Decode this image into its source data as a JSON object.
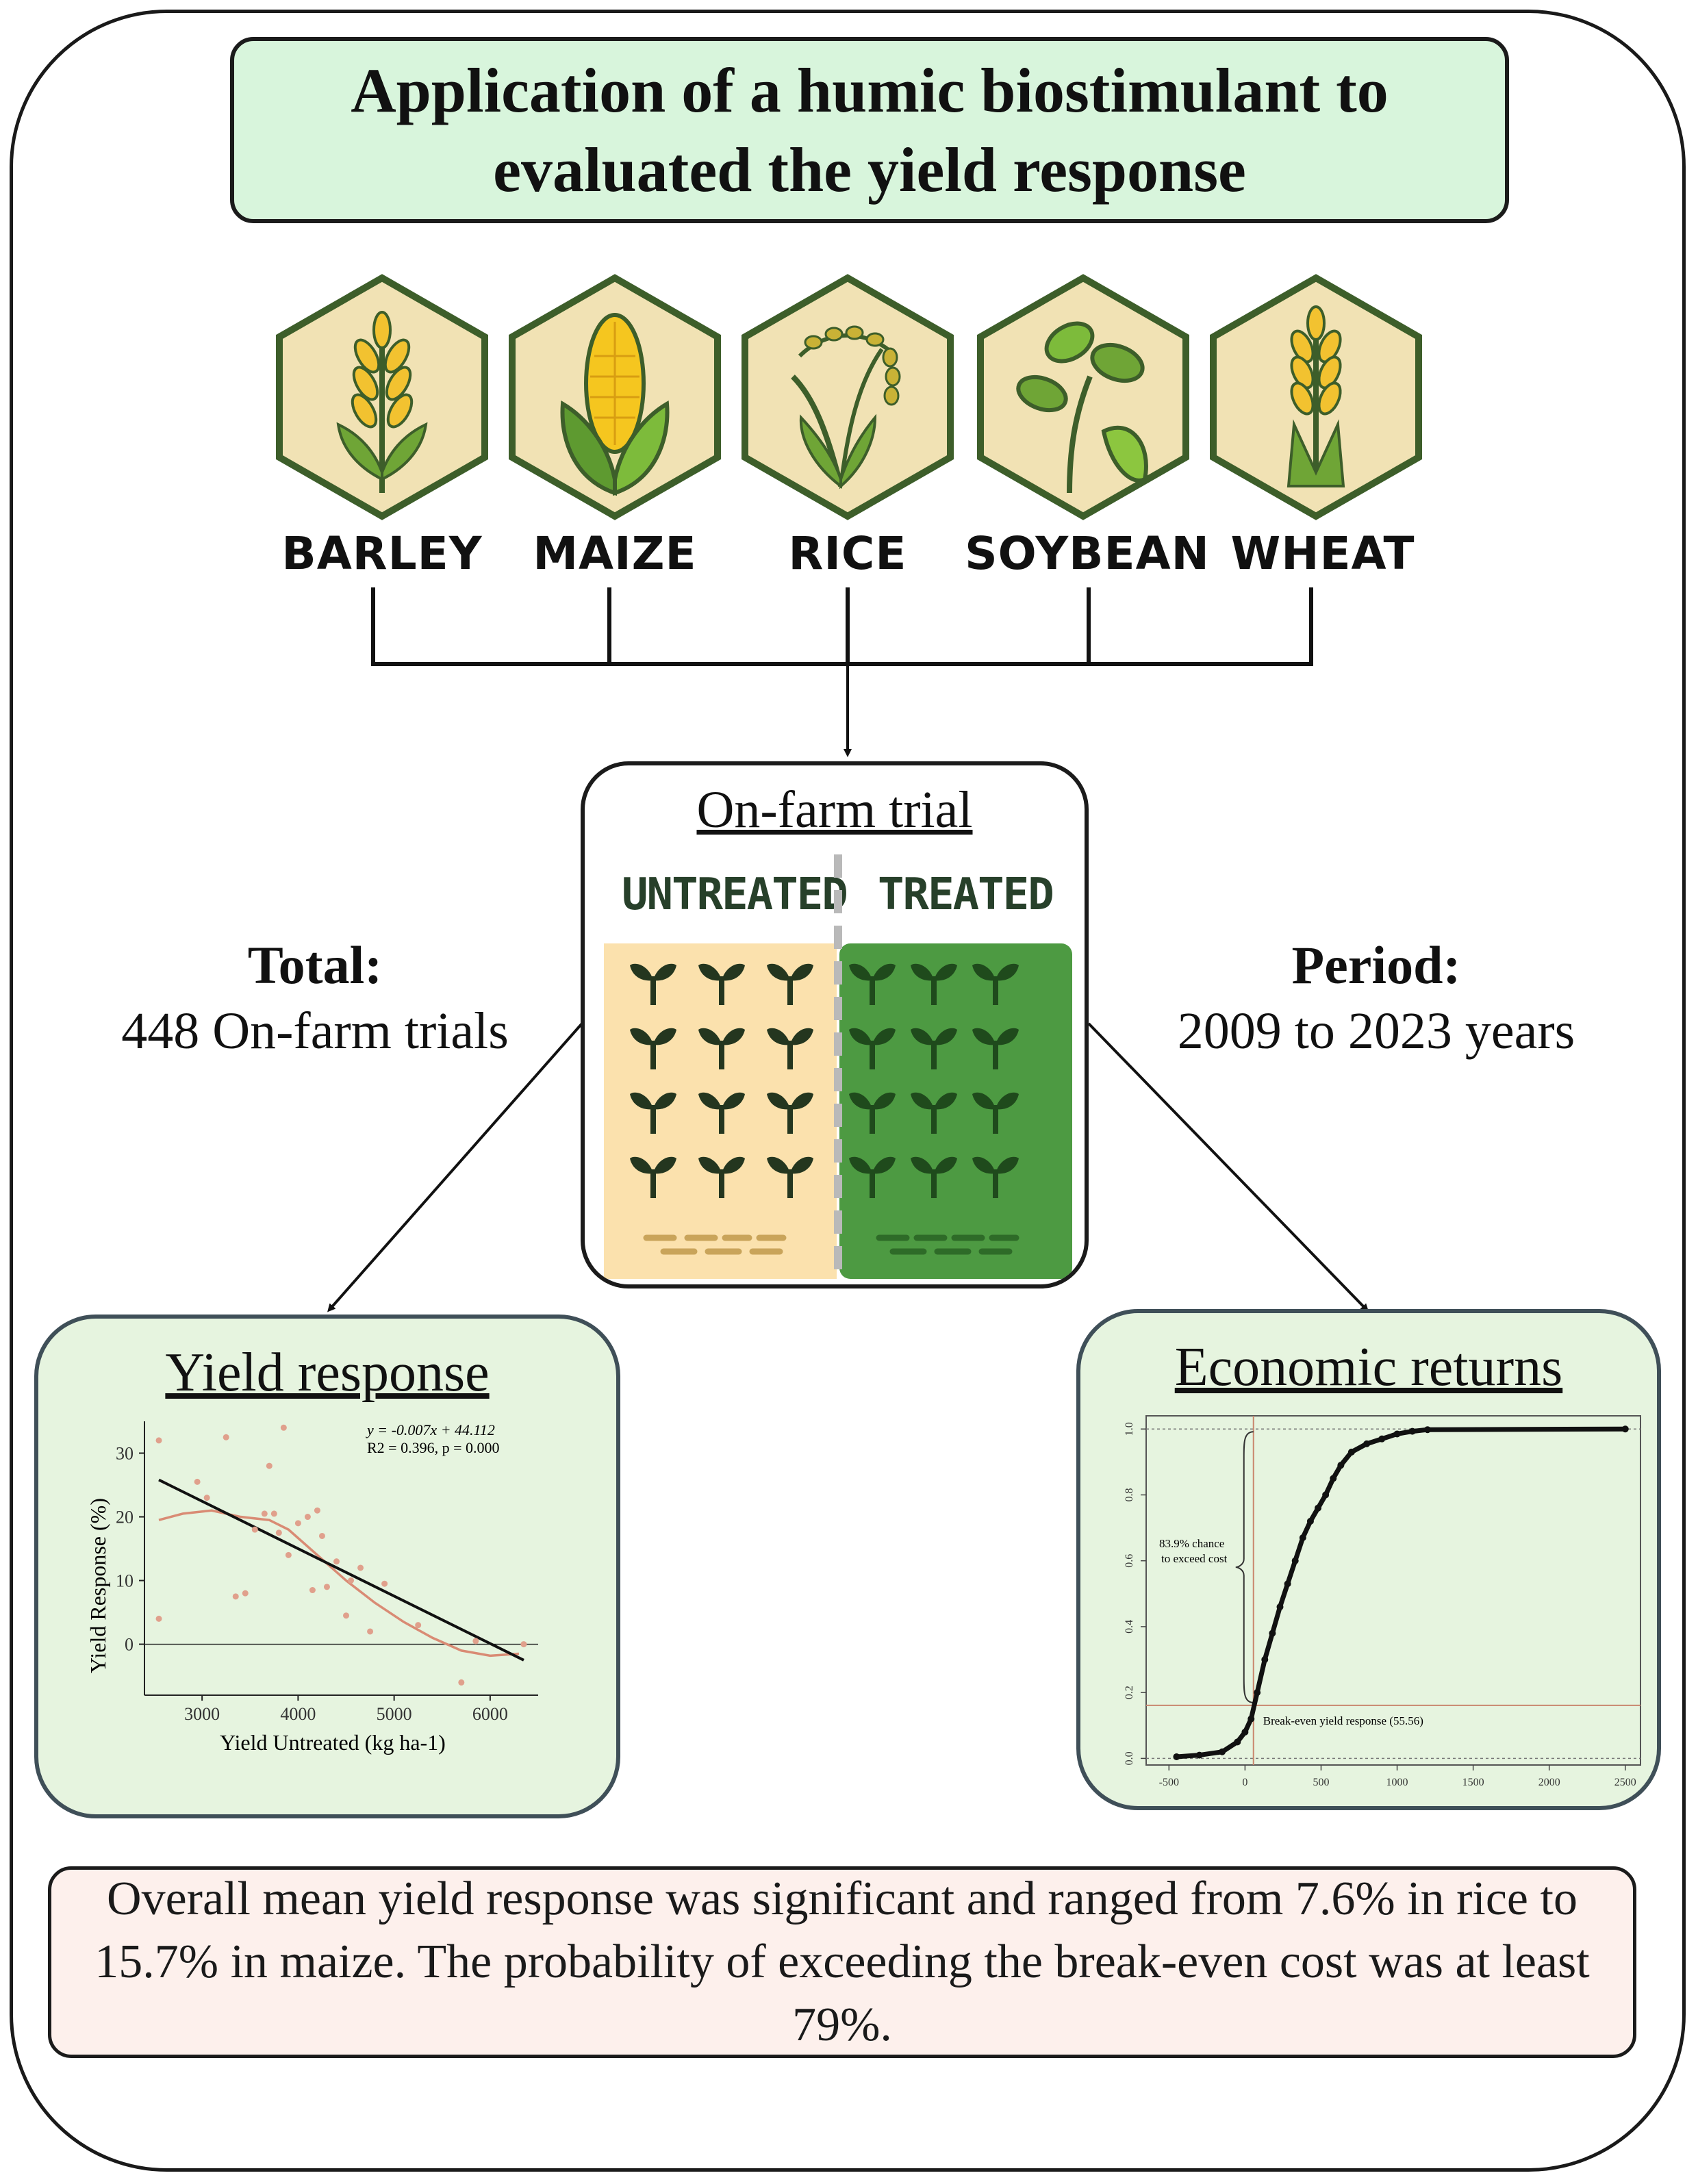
{
  "title": "Application of a humic biostimulant to evaluated the yield response",
  "crops": [
    {
      "label": "BARLEY",
      "icon": "barley-icon"
    },
    {
      "label": "MAIZE",
      "icon": "maize-icon"
    },
    {
      "label": "RICE",
      "icon": "rice-icon"
    },
    {
      "label": "SOYBEAN",
      "icon": "soybean-icon"
    },
    {
      "label": "WHEAT",
      "icon": "wheat-icon"
    }
  ],
  "total": {
    "heading": "Total:",
    "text": "448 On-farm trials"
  },
  "period": {
    "heading": "Period:",
    "text": "2009 to 2023 years"
  },
  "trial": {
    "title": "On-farm trial",
    "untreated": "UNTREATED",
    "treated": "TREATED"
  },
  "colors": {
    "title_bg": "#d8f5dc",
    "panel_bg": "#e6f4df",
    "hex_fill": "#f1e2b4",
    "hex_stroke": "#3d5e2a",
    "untreated_field": "#fbe1ad",
    "treated_field": "#4d9a42",
    "summary_bg": "#fdf0ec"
  },
  "yield_panel": {
    "title": "Yield response",
    "chart_data": {
      "type": "scatter",
      "xlabel": "Yield Untreated (kg ha-1)",
      "ylabel": "Yield Response (%)",
      "xlim": [
        2400,
        6500
      ],
      "ylim": [
        -8,
        35
      ],
      "xticks": [
        "3000",
        "4000",
        "5000",
        "6000"
      ],
      "yticks": [
        "0",
        "10",
        "20",
        "30"
      ],
      "equation": "y = -0.007x + 44.112",
      "stats": "R2 = 0.396, p = 0.000",
      "points": [
        [
          2550,
          32
        ],
        [
          2550,
          4
        ],
        [
          2950,
          25.5
        ],
        [
          3050,
          23
        ],
        [
          3250,
          32.5
        ],
        [
          3350,
          7.5
        ],
        [
          3450,
          8
        ],
        [
          3550,
          18
        ],
        [
          3650,
          20.5
        ],
        [
          3700,
          28
        ],
        [
          3750,
          20.5
        ],
        [
          3800,
          17.5
        ],
        [
          3850,
          34
        ],
        [
          3900,
          14
        ],
        [
          4000,
          19
        ],
        [
          4100,
          20
        ],
        [
          4150,
          8.5
        ],
        [
          4200,
          21
        ],
        [
          4250,
          17
        ],
        [
          4300,
          9
        ],
        [
          4400,
          13
        ],
        [
          4500,
          4.5
        ],
        [
          4550,
          10
        ],
        [
          4650,
          12
        ],
        [
          4750,
          2
        ],
        [
          4900,
          9.5
        ],
        [
          5250,
          3
        ],
        [
          5700,
          -6
        ],
        [
          5850,
          0.5
        ],
        [
          6350,
          0
        ]
      ],
      "fit_line": [
        [
          2550,
          25.8
        ],
        [
          6350,
          -2.5
        ]
      ],
      "smooth_curve": [
        [
          2550,
          19.5
        ],
        [
          2800,
          20.5
        ],
        [
          3100,
          21
        ],
        [
          3400,
          20
        ],
        [
          3700,
          19.5
        ],
        [
          3900,
          18
        ],
        [
          4200,
          14
        ],
        [
          4500,
          10
        ],
        [
          4800,
          6.5
        ],
        [
          5100,
          3.5
        ],
        [
          5400,
          1
        ],
        [
          5700,
          -1
        ],
        [
          6000,
          -1.8
        ],
        [
          6300,
          -1.5
        ]
      ]
    }
  },
  "economic_panel": {
    "title": "Economic returns",
    "chart_data": {
      "type": "line",
      "xlim": [
        -650,
        2600
      ],
      "ylim": [
        -0.02,
        1.04
      ],
      "xticks": [
        "-500",
        "0",
        "500",
        "1000",
        "1500",
        "2000",
        "2500"
      ],
      "yticks": [
        "0.0",
        "0.2",
        "0.4",
        "0.6",
        "0.8",
        "1.0"
      ],
      "chance_label_1": "83.9% chance",
      "chance_label_2": "to exceed cost",
      "breakeven_label": "Break-even yield response (55.56)",
      "breakeven_x": 55.56,
      "breakeven_y": 0.161,
      "cdf": [
        [
          -450,
          0.005
        ],
        [
          -300,
          0.01
        ],
        [
          -150,
          0.02
        ],
        [
          -50,
          0.05
        ],
        [
          0,
          0.08
        ],
        [
          40,
          0.12
        ],
        [
          80,
          0.2
        ],
        [
          130,
          0.3
        ],
        [
          180,
          0.38
        ],
        [
          230,
          0.46
        ],
        [
          280,
          0.53
        ],
        [
          330,
          0.6
        ],
        [
          380,
          0.67
        ],
        [
          430,
          0.72
        ],
        [
          480,
          0.76
        ],
        [
          530,
          0.8
        ],
        [
          580,
          0.85
        ],
        [
          630,
          0.89
        ],
        [
          700,
          0.93
        ],
        [
          800,
          0.955
        ],
        [
          900,
          0.97
        ],
        [
          1000,
          0.985
        ],
        [
          1100,
          0.993
        ],
        [
          1200,
          0.998
        ],
        [
          2500,
          1.0
        ]
      ]
    }
  },
  "summary": "Overall mean yield response was significant and ranged from 7.6% in rice to 15.7% in maize. The probability of exceeding the break-even cost was at least 79%."
}
